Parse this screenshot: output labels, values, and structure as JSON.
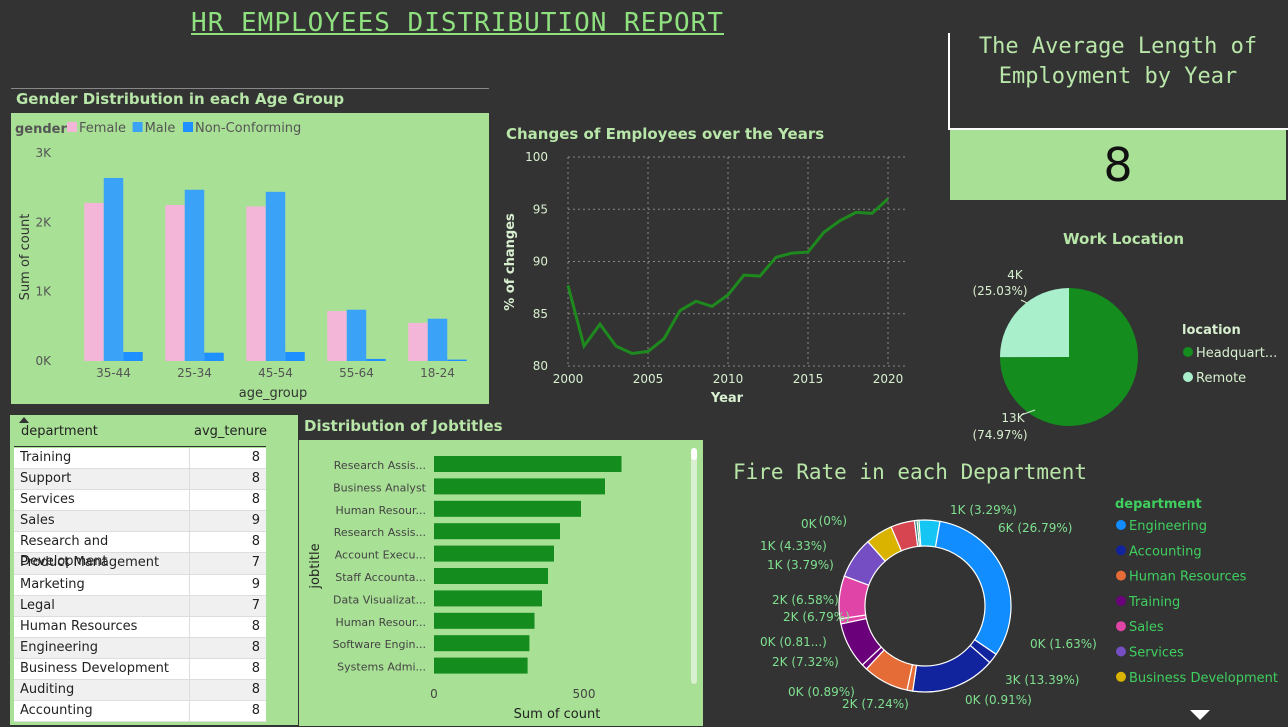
{
  "report_title": "HR EMPLOYEES DISTRIBUTION REPORT",
  "avg_tenure_card": {
    "title": "The Average Length of Employment by Year",
    "value": "8"
  },
  "chart_data": [
    {
      "type": "bar",
      "title": "Gender Distribution in each Age Group",
      "legend_title": "gender",
      "legend_position": "top-left",
      "categories": [
        "35-44",
        "25-34",
        "45-54",
        "55-64",
        "18-24"
      ],
      "series": [
        {
          "name": "Female",
          "color": "#f4b6d8",
          "values": [
            2280,
            2250,
            2230,
            720,
            550
          ]
        },
        {
          "name": "Male",
          "color": "#3ba3f7",
          "values": [
            2640,
            2470,
            2440,
            740,
            610
          ]
        },
        {
          "name": "Non-Conforming",
          "color": "#1e90ff",
          "values": [
            130,
            120,
            130,
            30,
            20
          ]
        }
      ],
      "xlabel": "age_group",
      "ylabel": "Sum of count",
      "ylim": [
        0,
        3000
      ],
      "yticks": [
        {
          "v": 0,
          "label": "0K"
        },
        {
          "v": 1000,
          "label": "1K"
        },
        {
          "v": 2000,
          "label": "2K"
        },
        {
          "v": 3000,
          "label": "3K"
        }
      ]
    },
    {
      "type": "line",
      "title": "Changes of Employees over the Years",
      "xlabel": "Year",
      "ylabel": "% of changes",
      "color": "#1e8a1e",
      "x": [
        2000,
        2001,
        2002,
        2003,
        2004,
        2005,
        2006,
        2007,
        2008,
        2009,
        2010,
        2011,
        2012,
        2013,
        2014,
        2015,
        2016,
        2017,
        2018,
        2019,
        2020
      ],
      "y": [
        87.7,
        81.9,
        84.0,
        81.9,
        81.2,
        81.4,
        82.6,
        85.3,
        86.2,
        85.7,
        86.8,
        88.7,
        88.6,
        90.4,
        90.8,
        90.9,
        92.8,
        93.9,
        94.7,
        94.6,
        96.0
      ],
      "xlim": [
        2000,
        2020
      ],
      "ylim": [
        80,
        100
      ],
      "xticks": [
        2000,
        2005,
        2010,
        2015,
        2020
      ],
      "yticks": [
        80,
        85,
        90,
        95,
        100
      ],
      "grid": true
    },
    {
      "type": "pie",
      "title": "Work Location",
      "legend_title": "location",
      "legend_position": "right",
      "slices": [
        {
          "name": "Headquart...",
          "value": 74.97,
          "label": "13K",
          "pct": "(74.97%)",
          "color": "#148c1e"
        },
        {
          "name": "Remote",
          "value": 25.03,
          "label": "4K",
          "pct": "(25.03%)",
          "color": "#a9efcb"
        }
      ]
    },
    {
      "type": "bar",
      "orientation": "horizontal",
      "title": "Distribution of Jobtitles",
      "categories": [
        "Research Assis...",
        "Business Analyst",
        "Human Resour...",
        "Research Assis...",
        "Account Execu...",
        "Staff Accounta...",
        "Data Visualizat...",
        "Human Resour...",
        "Software Engin...",
        "Systems Admi..."
      ],
      "values": [
        625,
        570,
        490,
        420,
        400,
        380,
        360,
        335,
        318,
        312
      ],
      "xlabel": "Sum of count",
      "ylabel": "jobtitle",
      "xlim": [
        0,
        900
      ],
      "xticks": [
        0,
        500
      ],
      "color": "#148c1e"
    },
    {
      "type": "pie",
      "donut": true,
      "title": "Fire Rate in each Department",
      "legend_title": "department",
      "legend_position": "right",
      "slices": [
        {
          "name": "Engineering",
          "value": 26.79,
          "label": "6K (26.79%)",
          "color": "#118dff"
        },
        {
          "name": "",
          "value": 1.63,
          "label": "0K (1.63%)",
          "color": "#12239e"
        },
        {
          "name": "Accounting",
          "value": 13.39,
          "label": "3K (13.39%)",
          "color": "#12239e"
        },
        {
          "name": "",
          "value": 0.91,
          "label": "0K (0.91%)",
          "color": "#e66c37"
        },
        {
          "name": "Human Resources",
          "value": 7.24,
          "label": "2K (7.24%)",
          "color": "#e66c37"
        },
        {
          "name": "",
          "value": 0.89,
          "label": "0K (0.89%)",
          "color": "#6b007b"
        },
        {
          "name": "Training",
          "value": 7.32,
          "label": "2K (7.32%)",
          "color": "#6b007b"
        },
        {
          "name": "",
          "value": 0.81,
          "label": "0K (0.81...)",
          "color": "#e044a7"
        },
        {
          "name": "Sales",
          "value": 6.79,
          "label": "2K (6.79%)",
          "color": "#e044a7"
        },
        {
          "name": "Services",
          "value": 6.58,
          "label": "2K (6.58%)",
          "color": "#744ec2"
        },
        {
          "name": "Business Development",
          "value": 4.33,
          "label": "1K (4.33%)",
          "color": "#d9b300"
        },
        {
          "name": "",
          "value": 3.79,
          "label": "1K (3.79%)",
          "color": "#d64550"
        },
        {
          "name": "",
          "value": 0.4,
          "label": "0K",
          "color": "#197278"
        },
        {
          "name": "",
          "value": 0.3,
          "label": "(0%)",
          "color": "#1aab40"
        },
        {
          "name": "",
          "value": 3.29,
          "label": "1K (3.29%)",
          "color": "#15c6f4"
        }
      ],
      "legend_items": [
        {
          "name": "Engineering",
          "color": "#118dff"
        },
        {
          "name": "Accounting",
          "color": "#12239e"
        },
        {
          "name": "Human Resources",
          "color": "#e66c37"
        },
        {
          "name": "Training",
          "color": "#6b007b"
        },
        {
          "name": "Sales",
          "color": "#e044a7"
        },
        {
          "name": "Services",
          "color": "#744ec2"
        },
        {
          "name": "Business Development",
          "color": "#d9b300"
        }
      ]
    }
  ],
  "tenure_table": {
    "headers": [
      "department",
      "avg_tenure"
    ],
    "rows": [
      [
        "Training",
        "8"
      ],
      [
        "Support",
        "8"
      ],
      [
        "Services",
        "8"
      ],
      [
        "Sales",
        "9"
      ],
      [
        "Research and Development",
        "8"
      ],
      [
        "Product Management",
        "7"
      ],
      [
        "Marketing",
        "9"
      ],
      [
        "Legal",
        "7"
      ],
      [
        "Human Resources",
        "8"
      ],
      [
        "Engineering",
        "8"
      ],
      [
        "Business Development",
        "8"
      ],
      [
        "Auditing",
        "8"
      ],
      [
        "Accounting",
        "8"
      ]
    ]
  }
}
